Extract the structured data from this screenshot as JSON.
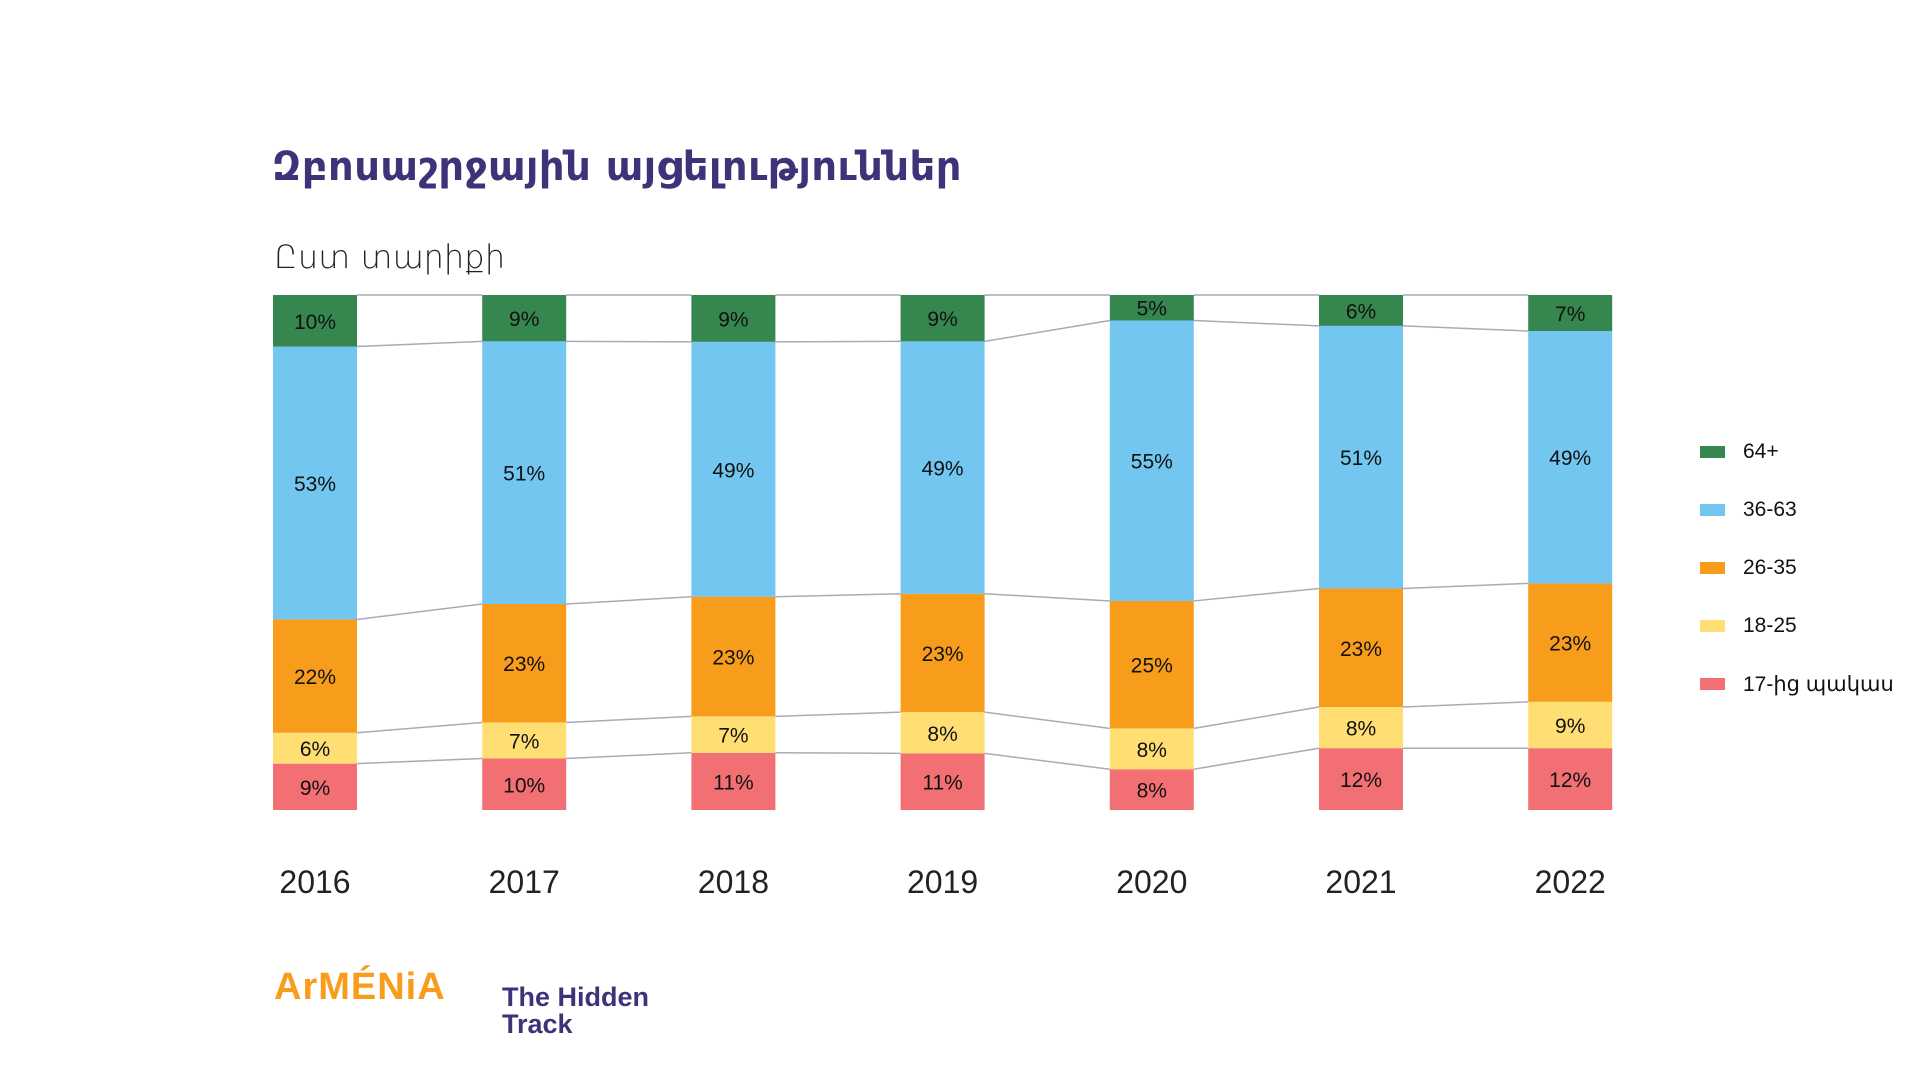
{
  "header": {
    "title": "Զբոսաշրջային այցելություններ",
    "subtitle": "Ըստ տարիքի"
  },
  "chart_data": {
    "type": "bar",
    "stacked": true,
    "title": "Զբոսաշրջային այցելություններ",
    "subtitle": "Ըստ տարիքի",
    "xlabel": "",
    "ylabel": "",
    "unit": "%",
    "legend_position": "right",
    "grid": false,
    "categories": [
      "2016",
      "2017",
      "2018",
      "2019",
      "2020",
      "2021",
      "2022"
    ],
    "series": [
      {
        "name": "17-ից պակաս",
        "color": "#F27073",
        "values": [
          9,
          10,
          11,
          11,
          8,
          12,
          12
        ]
      },
      {
        "name": "18-25",
        "color": "#FFDF73",
        "values": [
          6,
          7,
          7,
          8,
          8,
          8,
          9
        ]
      },
      {
        "name": "26-35",
        "color": "#F89C1C",
        "values": [
          22,
          23,
          23,
          23,
          25,
          23,
          23
        ]
      },
      {
        "name": "36-63",
        "color": "#72C6F0",
        "values": [
          53,
          51,
          49,
          49,
          55,
          51,
          49
        ]
      },
      {
        "name": "64+",
        "color": "#36874F",
        "values": [
          10,
          9,
          9,
          9,
          5,
          6,
          7
        ]
      }
    ],
    "legend_order": [
      "64+",
      "36-63",
      "26-35",
      "18-25",
      "17-ից պակաս"
    ]
  },
  "branding": {
    "logo_primary": "ArMÉNiA",
    "logo_secondary_line1": "The Hidden",
    "logo_secondary_line2": "Track",
    "primary_color": "#F89C1C",
    "secondary_color": "#3F3278"
  }
}
